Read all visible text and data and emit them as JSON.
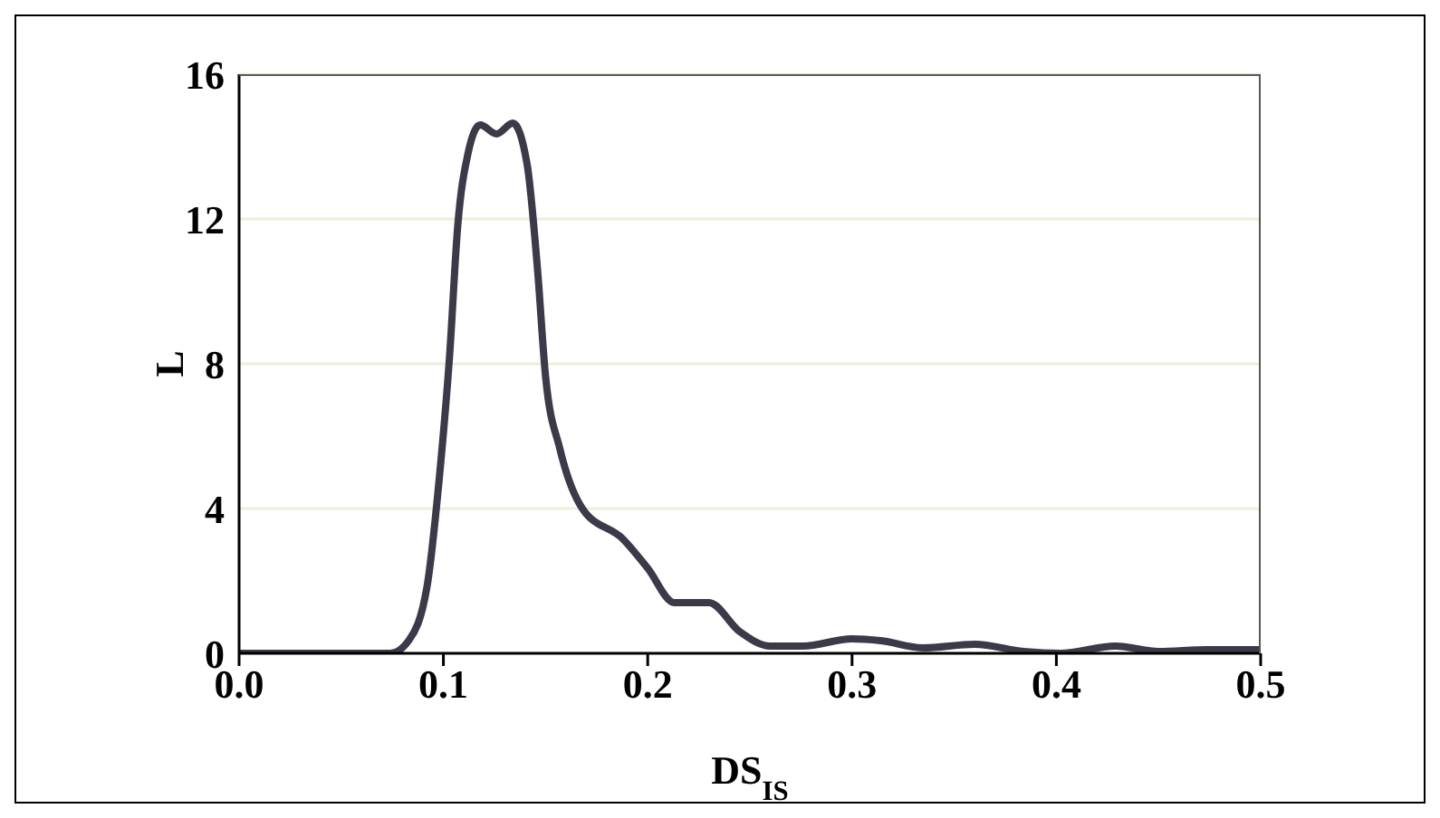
{
  "chart_data": {
    "type": "line",
    "xlabel": "DS$_{IS}$",
    "ylabel": "L",
    "x": [
      0,
      0.074,
      0.083,
      0.092,
      0.098,
      0.103,
      0.107,
      0.112,
      0.118,
      0.126,
      0.134,
      0.141,
      0.146,
      0.15,
      0.157,
      0.168,
      0.188,
      0.2,
      0.213,
      0.218,
      0.23,
      0.245,
      0.26,
      0.276,
      0.3,
      0.314,
      0.335,
      0.36,
      0.384,
      0.402,
      0.429,
      0.45,
      0.474,
      0.5
    ],
    "series": [
      {
        "color": "#3a3a48",
        "values": [
          0,
          0,
          0.35,
          1.85,
          4.85,
          8.2,
          11.8,
          13.8,
          14.6,
          14.35,
          14.65,
          13.5,
          10.65,
          7.65,
          5.65,
          4.0,
          3.15,
          2.35,
          1.4,
          1.4,
          1.4,
          0.6,
          0.2,
          0.2,
          0.4,
          0.35,
          0.15,
          0.25,
          0.05,
          0,
          0.2,
          0.05,
          0.1,
          0.1
        ]
      }
    ],
    "xlim": [
      0,
      0.5
    ],
    "xticks": [
      {
        "value": 0,
        "label": "0.0"
      },
      0.1,
      0.2,
      0.3,
      0.4,
      0.5
    ],
    "ylim": [
      0,
      16
    ],
    "yticks": [
      0,
      4,
      8,
      12,
      16
    ],
    "grid": "y",
    "marker": "none",
    "line_style": "solid",
    "legend": false
  }
}
